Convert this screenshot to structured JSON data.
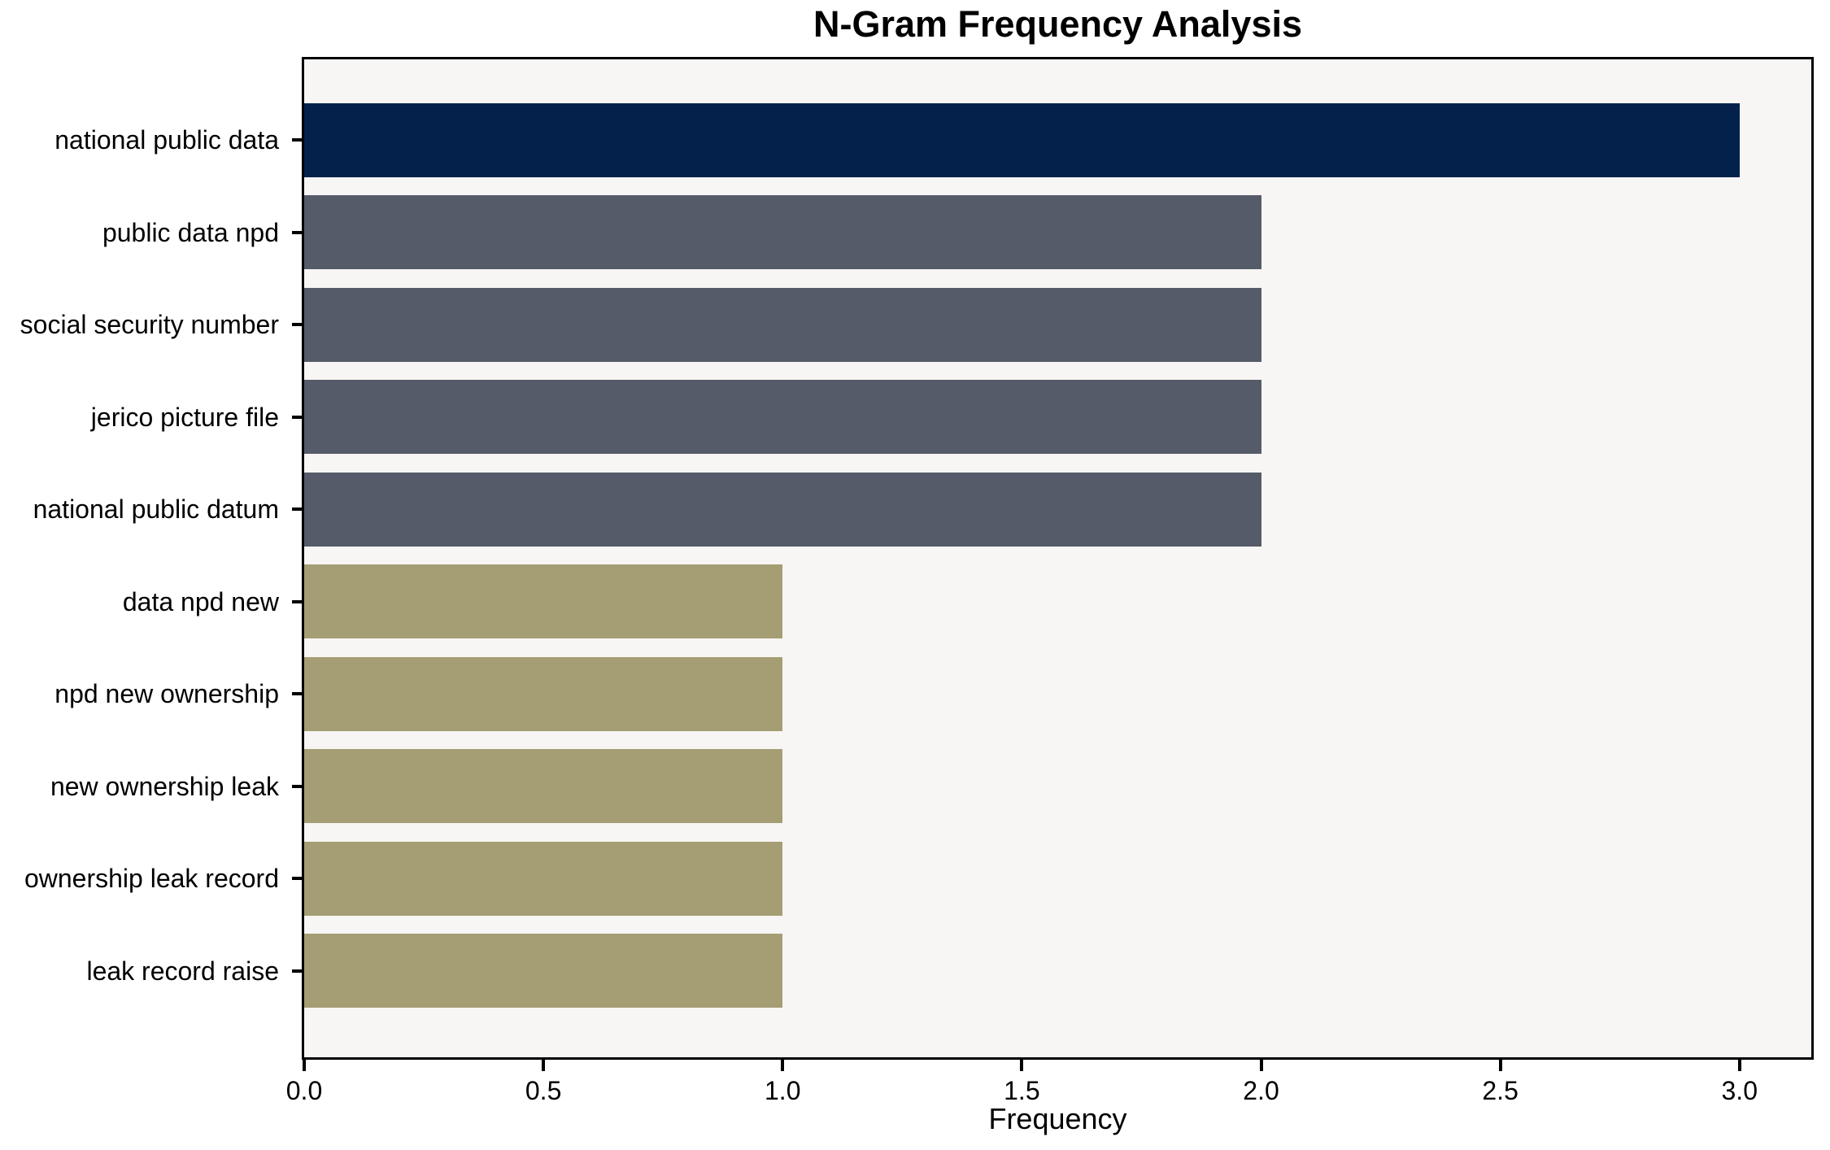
{
  "chart_data": {
    "type": "bar",
    "orientation": "horizontal",
    "title": "N-Gram Frequency Analysis",
    "xlabel": "Frequency",
    "ylabel": "",
    "categories": [
      "national public data",
      "public data npd",
      "social security number",
      "jerico picture file",
      "national public datum",
      "data npd new",
      "npd new ownership",
      "new ownership leak",
      "ownership leak record",
      "leak record raise"
    ],
    "values": [
      3,
      2,
      2,
      2,
      2,
      1,
      1,
      1,
      1,
      1
    ],
    "xlim": [
      0,
      3.15
    ],
    "x_tick_values": [
      0,
      0.5,
      1.0,
      1.5,
      2.0,
      2.5,
      3.0
    ],
    "x_tick_labels": [
      "0.0",
      "0.5",
      "1.0",
      "1.5",
      "2.0",
      "2.5",
      "3.0"
    ],
    "bar_colors": [
      "#03214b",
      "#565b69",
      "#565b69",
      "#565b69",
      "#565b69",
      "#a59d73",
      "#a59d73",
      "#a59d73",
      "#a59d73",
      "#a59d73"
    ],
    "grid": false,
    "legend": "none",
    "plot_background": "#f7f6f4",
    "figure_background": "#ffffff",
    "spine_color": "#000000",
    "text_color": "#000000"
  }
}
